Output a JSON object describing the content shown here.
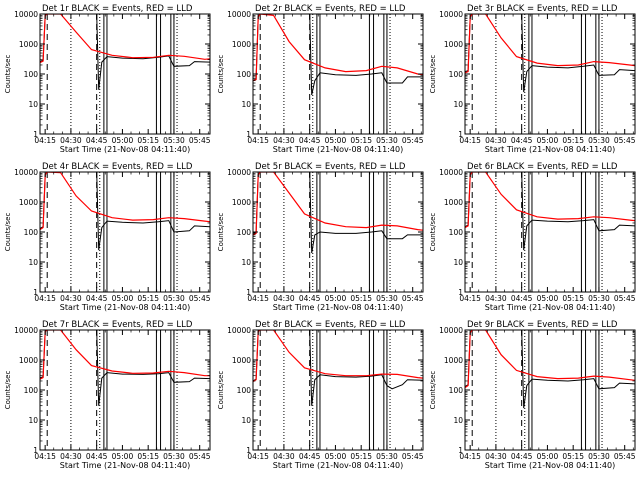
{
  "chart_data": {
    "type": "line",
    "yscale": "log",
    "ylim": [
      1,
      10000
    ],
    "xlim_hours": [
      4.2,
      5.85
    ],
    "xticks": [
      "04:15",
      "04:30",
      "04:45",
      "05:00",
      "05:15",
      "05:30",
      "05:45"
    ],
    "yticks": [
      "1",
      "10",
      "100",
      "1000",
      "10000"
    ],
    "xlabel": "Start Time (21-Nov-08 04:11:40)",
    "ylabel": "Counts/sec",
    "series_colors": {
      "events": "#000000",
      "lld": "#ff0000"
    },
    "panels": [
      {
        "title": "Det 1r BLACK = Events, RED = LLD",
        "events": [
          [
            4.2,
            260
          ],
          [
            4.23,
            290
          ],
          [
            4.25,
            9000
          ],
          [
            4.27,
            10000
          ],
          [
            4.75,
            10000
          ],
          [
            4.77,
            30
          ],
          [
            4.8,
            250
          ],
          [
            4.85,
            380
          ],
          [
            5.0,
            340
          ],
          [
            5.2,
            320
          ],
          [
            5.35,
            360
          ],
          [
            5.45,
            400
          ],
          [
            5.5,
            180
          ],
          [
            5.65,
            190
          ],
          [
            5.7,
            260
          ],
          [
            5.85,
            250
          ]
        ],
        "lld": [
          [
            4.2,
            240
          ],
          [
            4.23,
            270
          ],
          [
            4.25,
            9000
          ],
          [
            4.27,
            10000
          ],
          [
            4.4,
            10000
          ],
          [
            4.55,
            2500
          ],
          [
            4.7,
            650
          ],
          [
            4.9,
            420
          ],
          [
            5.1,
            350
          ],
          [
            5.3,
            360
          ],
          [
            5.45,
            420
          ],
          [
            5.6,
            390
          ],
          [
            5.8,
            310
          ],
          [
            5.85,
            320
          ]
        ]
      },
      {
        "title": "Det 2r BLACK = Events, RED = LLD",
        "events": [
          [
            4.2,
            60
          ],
          [
            4.23,
            70
          ],
          [
            4.25,
            8000
          ],
          [
            4.27,
            10000
          ],
          [
            4.75,
            10000
          ],
          [
            4.77,
            20
          ],
          [
            4.8,
            60
          ],
          [
            4.85,
            110
          ],
          [
            5.0,
            95
          ],
          [
            5.2,
            90
          ],
          [
            5.35,
            100
          ],
          [
            5.45,
            110
          ],
          [
            5.5,
            50
          ],
          [
            5.65,
            50
          ],
          [
            5.7,
            80
          ],
          [
            5.85,
            80
          ]
        ],
        "lld": [
          [
            4.2,
            60
          ],
          [
            4.23,
            65
          ],
          [
            4.25,
            8000
          ],
          [
            4.27,
            10000
          ],
          [
            4.4,
            9000
          ],
          [
            4.55,
            1200
          ],
          [
            4.7,
            300
          ],
          [
            4.9,
            160
          ],
          [
            5.1,
            120
          ],
          [
            5.3,
            130
          ],
          [
            5.45,
            180
          ],
          [
            5.6,
            160
          ],
          [
            5.8,
            100
          ],
          [
            5.85,
            95
          ]
        ]
      },
      {
        "title": "Det 3r BLACK = Events, RED = LLD",
        "events": [
          [
            4.2,
            120
          ],
          [
            4.23,
            130
          ],
          [
            4.25,
            8000
          ],
          [
            4.27,
            10000
          ],
          [
            4.75,
            10000
          ],
          [
            4.77,
            25
          ],
          [
            4.8,
            120
          ],
          [
            4.85,
            190
          ],
          [
            5.0,
            170
          ],
          [
            5.2,
            160
          ],
          [
            5.35,
            180
          ],
          [
            5.45,
            200
          ],
          [
            5.5,
            90
          ],
          [
            5.65,
            95
          ],
          [
            5.7,
            140
          ],
          [
            5.85,
            130
          ]
        ],
        "lld": [
          [
            4.2,
            110
          ],
          [
            4.23,
            120
          ],
          [
            4.25,
            8000
          ],
          [
            4.27,
            10000
          ],
          [
            4.4,
            10000
          ],
          [
            4.55,
            1600
          ],
          [
            4.7,
            380
          ],
          [
            4.9,
            230
          ],
          [
            5.1,
            190
          ],
          [
            5.3,
            200
          ],
          [
            5.45,
            260
          ],
          [
            5.6,
            240
          ],
          [
            5.8,
            200
          ],
          [
            5.85,
            190
          ]
        ]
      },
      {
        "title": "Det 4r BLACK = Events, RED = LLD",
        "events": [
          [
            4.2,
            130
          ],
          [
            4.23,
            150
          ],
          [
            4.25,
            8000
          ],
          [
            4.27,
            10000
          ],
          [
            4.75,
            10000
          ],
          [
            4.77,
            25
          ],
          [
            4.8,
            140
          ],
          [
            4.85,
            230
          ],
          [
            5.0,
            210
          ],
          [
            5.2,
            200
          ],
          [
            5.35,
            220
          ],
          [
            5.45,
            240
          ],
          [
            5.5,
            100
          ],
          [
            5.65,
            110
          ],
          [
            5.7,
            160
          ],
          [
            5.85,
            150
          ]
        ],
        "lld": [
          [
            4.2,
            120
          ],
          [
            4.23,
            140
          ],
          [
            4.25,
            8000
          ],
          [
            4.27,
            10000
          ],
          [
            4.4,
            9500
          ],
          [
            4.55,
            1600
          ],
          [
            4.7,
            500
          ],
          [
            4.9,
            300
          ],
          [
            5.1,
            250
          ],
          [
            5.3,
            260
          ],
          [
            5.45,
            300
          ],
          [
            5.6,
            280
          ],
          [
            5.8,
            230
          ],
          [
            5.85,
            220
          ]
        ]
      },
      {
        "title": "Det 5r BLACK = Events, RED = LLD",
        "events": [
          [
            4.2,
            90
          ],
          [
            4.23,
            100
          ],
          [
            4.25,
            8000
          ],
          [
            4.27,
            10000
          ],
          [
            4.75,
            10000
          ],
          [
            4.77,
            20
          ],
          [
            4.8,
            80
          ],
          [
            4.85,
            100
          ],
          [
            5.0,
            90
          ],
          [
            5.2,
            90
          ],
          [
            5.35,
            100
          ],
          [
            5.45,
            110
          ],
          [
            5.5,
            60
          ],
          [
            5.65,
            60
          ],
          [
            5.7,
            80
          ],
          [
            5.85,
            80
          ]
        ],
        "lld": [
          [
            4.2,
            80
          ],
          [
            4.23,
            90
          ],
          [
            4.25,
            8000
          ],
          [
            4.27,
            10000
          ],
          [
            4.4,
            10000
          ],
          [
            4.55,
            2000
          ],
          [
            4.7,
            400
          ],
          [
            4.9,
            200
          ],
          [
            5.1,
            150
          ],
          [
            5.3,
            140
          ],
          [
            5.45,
            170
          ],
          [
            5.6,
            160
          ],
          [
            5.8,
            120
          ],
          [
            5.85,
            115
          ]
        ]
      },
      {
        "title": "Det 6r BLACK = Events, RED = LLD",
        "events": [
          [
            4.2,
            150
          ],
          [
            4.23,
            170
          ],
          [
            4.25,
            8000
          ],
          [
            4.27,
            10000
          ],
          [
            4.75,
            10000
          ],
          [
            4.77,
            25
          ],
          [
            4.8,
            160
          ],
          [
            4.85,
            250
          ],
          [
            5.0,
            230
          ],
          [
            5.2,
            220
          ],
          [
            5.35,
            240
          ],
          [
            5.45,
            260
          ],
          [
            5.5,
            110
          ],
          [
            5.65,
            120
          ],
          [
            5.7,
            170
          ],
          [
            5.85,
            160
          ]
        ],
        "lld": [
          [
            4.2,
            140
          ],
          [
            4.23,
            160
          ],
          [
            4.25,
            8000
          ],
          [
            4.27,
            10000
          ],
          [
            4.4,
            10000
          ],
          [
            4.55,
            1800
          ],
          [
            4.7,
            550
          ],
          [
            4.9,
            320
          ],
          [
            5.1,
            270
          ],
          [
            5.3,
            280
          ],
          [
            5.45,
            320
          ],
          [
            5.6,
            300
          ],
          [
            5.8,
            250
          ],
          [
            5.85,
            240
          ]
        ]
      },
      {
        "title": "Det 7r BLACK = Events, RED = LLD",
        "events": [
          [
            4.2,
            250
          ],
          [
            4.23,
            280
          ],
          [
            4.25,
            9000
          ],
          [
            4.27,
            10000
          ],
          [
            4.75,
            10000
          ],
          [
            4.77,
            30
          ],
          [
            4.8,
            250
          ],
          [
            4.85,
            380
          ],
          [
            5.0,
            340
          ],
          [
            5.2,
            330
          ],
          [
            5.35,
            350
          ],
          [
            5.45,
            380
          ],
          [
            5.5,
            180
          ],
          [
            5.65,
            190
          ],
          [
            5.7,
            250
          ],
          [
            5.85,
            240
          ]
        ],
        "lld": [
          [
            4.2,
            230
          ],
          [
            4.23,
            260
          ],
          [
            4.25,
            9000
          ],
          [
            4.27,
            10000
          ],
          [
            4.4,
            10000
          ],
          [
            4.55,
            2200
          ],
          [
            4.7,
            650
          ],
          [
            4.9,
            430
          ],
          [
            5.1,
            360
          ],
          [
            5.3,
            370
          ],
          [
            5.45,
            420
          ],
          [
            5.6,
            380
          ],
          [
            5.8,
            300
          ],
          [
            5.85,
            300
          ]
        ]
      },
      {
        "title": "Det 8r BLACK = Events, RED = LLD",
        "events": [
          [
            4.2,
            200
          ],
          [
            4.23,
            230
          ],
          [
            4.25,
            9000
          ],
          [
            4.27,
            10000
          ],
          [
            4.75,
            10000
          ],
          [
            4.77,
            30
          ],
          [
            4.8,
            220
          ],
          [
            4.85,
            320
          ],
          [
            5.0,
            280
          ],
          [
            5.2,
            270
          ],
          [
            5.35,
            290
          ],
          [
            5.45,
            320
          ],
          [
            5.5,
            140
          ],
          [
            5.55,
            110
          ],
          [
            5.65,
            150
          ],
          [
            5.7,
            220
          ],
          [
            5.85,
            210
          ]
        ],
        "lld": [
          [
            4.2,
            190
          ],
          [
            4.23,
            220
          ],
          [
            4.25,
            9000
          ],
          [
            4.27,
            10000
          ],
          [
            4.4,
            10000
          ],
          [
            4.55,
            1800
          ],
          [
            4.7,
            550
          ],
          [
            4.9,
            350
          ],
          [
            5.1,
            300
          ],
          [
            5.3,
            300
          ],
          [
            5.45,
            340
          ],
          [
            5.6,
            330
          ],
          [
            5.8,
            260
          ],
          [
            5.85,
            250
          ]
        ]
      },
      {
        "title": "Det 9r BLACK = Events, RED = LLD",
        "events": [
          [
            4.2,
            130
          ],
          [
            4.23,
            150
          ],
          [
            4.25,
            8000
          ],
          [
            4.27,
            10000
          ],
          [
            4.75,
            10000
          ],
          [
            4.77,
            25
          ],
          [
            4.8,
            140
          ],
          [
            4.85,
            230
          ],
          [
            5.0,
            210
          ],
          [
            5.2,
            200
          ],
          [
            5.35,
            220
          ],
          [
            5.45,
            240
          ],
          [
            5.5,
            110
          ],
          [
            5.65,
            120
          ],
          [
            5.7,
            170
          ],
          [
            5.85,
            160
          ]
        ],
        "lld": [
          [
            4.2,
            120
          ],
          [
            4.23,
            140
          ],
          [
            4.25,
            8000
          ],
          [
            4.27,
            10000
          ],
          [
            4.4,
            10000
          ],
          [
            4.55,
            1500
          ],
          [
            4.7,
            450
          ],
          [
            4.9,
            280
          ],
          [
            5.1,
            240
          ],
          [
            5.3,
            250
          ],
          [
            5.45,
            290
          ],
          [
            5.6,
            270
          ],
          [
            5.8,
            220
          ],
          [
            5.85,
            210
          ]
        ]
      }
    ],
    "marker_lines": {
      "dashed": [
        4.27,
        4.75
      ],
      "dotted": [
        4.5,
        4.78,
        5.53
      ],
      "solid": [
        4.82,
        4.85,
        5.33,
        5.37,
        5.47,
        5.5
      ]
    }
  }
}
